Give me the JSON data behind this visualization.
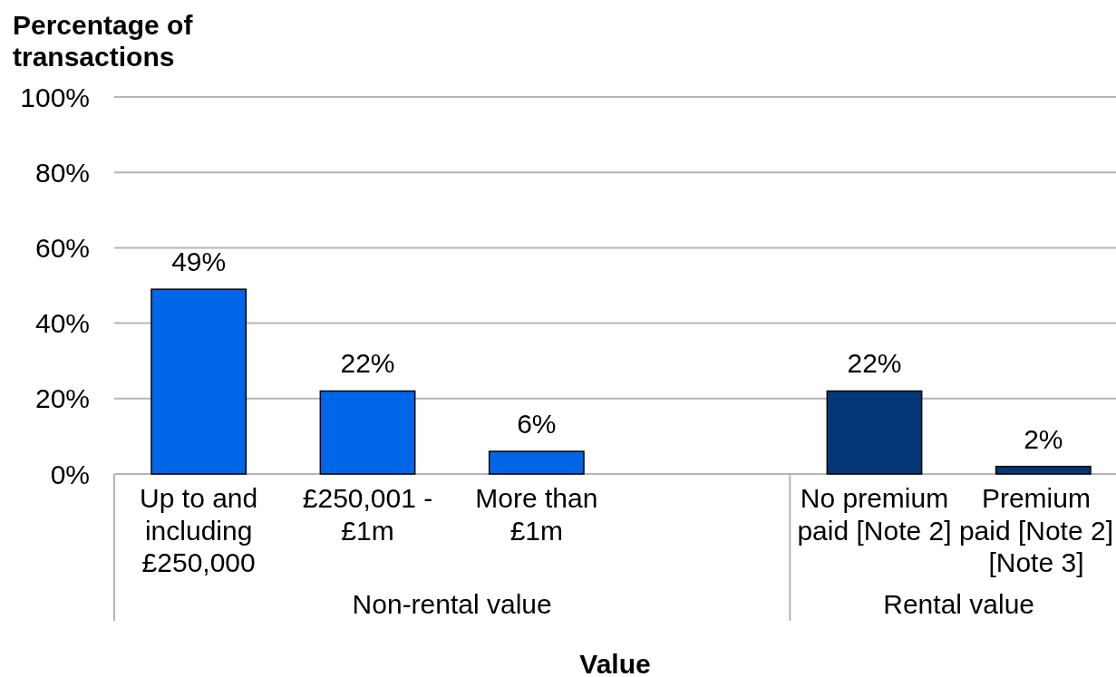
{
  "chart_data": {
    "type": "bar",
    "xlabel": "Value",
    "ylabel": "Percentage of transactions",
    "categories": [
      "Up to and including £250,000",
      "£250,001 - £1m",
      "More than £1m",
      null,
      "No premium paid [Note 2]",
      "Premium paid [Note 2] [Note 3]"
    ],
    "values": [
      49,
      22,
      6,
      null,
      22,
      2
    ],
    "colors": [
      "#0066e8",
      "#0066e8",
      "#0066e8",
      null,
      "#033778",
      "#033778"
    ],
    "value_labels": [
      "49%",
      "22%",
      "6%",
      null,
      "22%",
      "2%"
    ],
    "ylim": [
      0,
      100
    ],
    "yticks": [
      {
        "value": 0,
        "label": "0%"
      },
      {
        "value": 20,
        "label": "20%"
      },
      {
        "value": 40,
        "label": "40%"
      },
      {
        "value": 60,
        "label": "60%"
      },
      {
        "value": 80,
        "label": "80%"
      },
      {
        "value": 100,
        "label": "100%"
      }
    ],
    "grid": "y",
    "annotations": [
      "Non-rental value",
      "Rental value"
    ]
  }
}
